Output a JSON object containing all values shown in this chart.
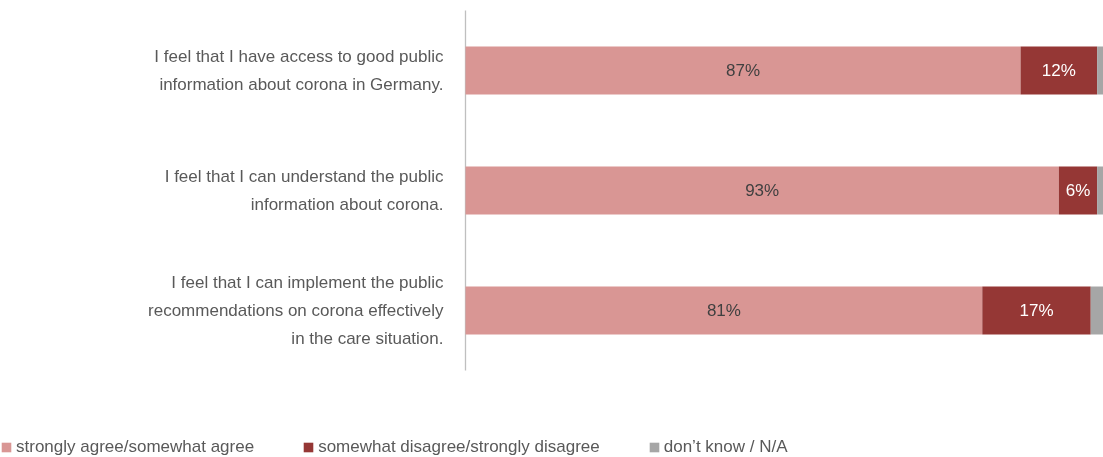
{
  "chart_data": {
    "type": "bar",
    "orientation": "horizontal",
    "stacked": true,
    "categories": [
      "I feel that I have access to good public\ninformation about corona in Germany.",
      "I feel that I can understand the public\ninformation about corona.",
      "I feel that I can implement the public\nrecommendations on corona effectively\nin the care situation."
    ],
    "series": [
      {
        "name": "strongly agree/somewhat agree",
        "color": "#d99694",
        "values": [
          87,
          93,
          81
        ],
        "value_labels": [
          "87%",
          "93%",
          "81%"
        ]
      },
      {
        "name": "somewhat disagree/strongly disagree",
        "color": "#953735",
        "values": [
          12,
          6,
          17
        ],
        "value_labels": [
          "12%",
          "6%",
          "17%"
        ]
      },
      {
        "name": "don’t know / N/A",
        "color": "#a6a6a6",
        "values": [
          1,
          1,
          2
        ],
        "value_labels": [
          null,
          null,
          null
        ]
      }
    ],
    "legend": "bottom"
  }
}
